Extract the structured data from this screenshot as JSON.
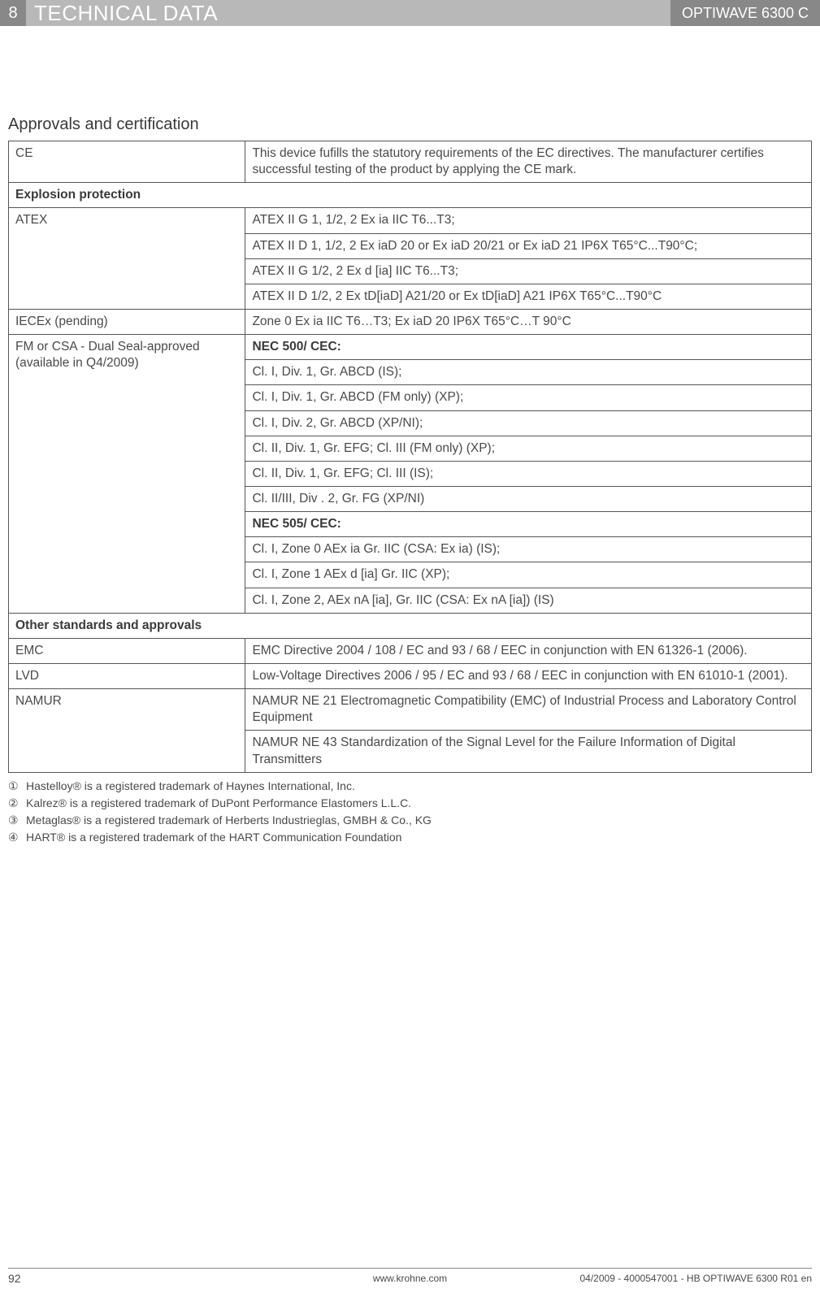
{
  "header": {
    "chapterNum": "8",
    "chapterTitle": "TECHNICAL DATA",
    "productName": "OPTIWAVE 6300 C"
  },
  "sectionTitle": "Approvals and certification",
  "table": {
    "ce": {
      "label": "CE",
      "text": "This device fufills the statutory requirements of the EC directives. The manufacturer certifies successful testing of the product by applying the CE mark."
    },
    "explosionHeader": "Explosion protection",
    "atex": {
      "label": "ATEX",
      "r1": "ATEX II G 1, 1/2, 2 Ex ia IIC T6...T3;",
      "r2": "ATEX II D 1, 1/2, 2 Ex iaD 20 or Ex iaD 20/21 or Ex iaD 21 IP6X T65°C...T90°C;",
      "r3": "ATEX II G 1/2, 2 Ex d [ia] IIC T6...T3;",
      "r4": "ATEX II D 1/2, 2 Ex tD[iaD] A21/20 or Ex tD[iaD] A21 IP6X T65°C...T90°C"
    },
    "iecex": {
      "label": "IECEx (pending)",
      "text": "Zone 0 Ex ia IIC T6…T3; Ex iaD 20 IP6X T65°C…T 90°C"
    },
    "fmcsa": {
      "label": "FM or CSA - Dual Seal-approved (available in Q4/2009)",
      "h1": "NEC 500/ CEC:",
      "r1": "Cl. I, Div. 1, Gr. ABCD (IS);",
      "r2": "Cl. I, Div. 1, Gr. ABCD (FM only) (XP);",
      "r3": "Cl. I, Div. 2, Gr. ABCD (XP/NI);",
      "r4": "Cl. II, Div. 1, Gr. EFG; Cl. III (FM only) (XP);",
      "r5": "Cl. II, Div. 1, Gr. EFG; Cl. III (IS);",
      "r6": "Cl. II/III, Div . 2, Gr. FG (XP/NI)",
      "h2": "NEC 505/ CEC:",
      "r7": "Cl. I, Zone 0 AEx ia Gr. IIC (CSA: Ex ia) (IS);",
      "r8": "Cl. I, Zone 1 AEx d [ia] Gr. IIC (XP);",
      "r9": "Cl. I, Zone 2, AEx nA [ia], Gr. IIC (CSA: Ex nA [ia]) (IS)"
    },
    "otherHeader": "Other standards and approvals",
    "emc": {
      "label": "EMC",
      "text": "EMC Directive 2004 / 108 / EC and 93 / 68 / EEC in conjunction with EN 61326-1 (2006)."
    },
    "lvd": {
      "label": "LVD",
      "text": "Low-Voltage Directives 2006 / 95 / EC and 93 / 68 / EEC in conjunction with EN 61010-1 (2001)."
    },
    "namur": {
      "label": "NAMUR",
      "r1": "NAMUR NE 21 Electromagnetic Compatibility (EMC) of Industrial Process and Laboratory Control Equipment",
      "r2": "NAMUR NE 43 Standardization of the Signal Level for the Failure Information of Digital Transmitters"
    }
  },
  "footnotes": {
    "f1": {
      "num": "①",
      "text": "Hastelloy® is a registered trademark of Haynes International, Inc."
    },
    "f2": {
      "num": "②",
      "text": "Kalrez® is a registered trademark of DuPont Performance Elastomers L.L.C."
    },
    "f3": {
      "num": "③",
      "text": "Metaglas® is a registered trademark of Herberts Industrieglas, GMBH & Co., KG"
    },
    "f4": {
      "num": "④",
      "text": "HART® is a registered trademark of the HART Communication Foundation"
    }
  },
  "footer": {
    "pageNum": "92",
    "url": "www.krohne.com",
    "docRef": "04/2009 - 4000547001 - HB OPTIWAVE 6300 R01 en"
  }
}
